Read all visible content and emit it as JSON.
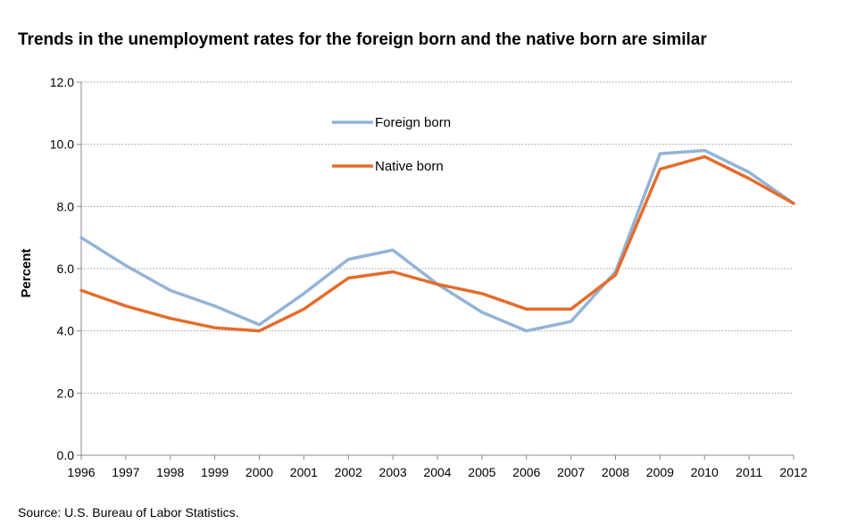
{
  "chart_data": {
    "type": "line",
    "title": "Trends in the unemployment rates for the foreign born and the native born are similar",
    "ylabel": "Percent",
    "xlabel": "",
    "x": [
      "1996",
      "1997",
      "1998",
      "1999",
      "2000",
      "2001",
      "2002",
      "2003",
      "2004",
      "2005",
      "2006",
      "2007",
      "2008",
      "2009",
      "2010",
      "2011",
      "2012"
    ],
    "ylim": [
      0,
      12
    ],
    "yticks": [
      "0.0",
      "2.0",
      "4.0",
      "6.0",
      "8.0",
      "10.0",
      "12.0"
    ],
    "grid": "horizontal dotted",
    "legend_position": "top-center",
    "series": [
      {
        "name": "Foreign born",
        "color": "#93b3d7",
        "values": [
          7.0,
          6.1,
          5.3,
          4.8,
          4.2,
          5.2,
          6.3,
          6.6,
          5.5,
          4.6,
          4.0,
          4.3,
          5.9,
          9.7,
          9.8,
          9.1,
          8.1
        ]
      },
      {
        "name": "Native born",
        "color": "#e46c2c",
        "values": [
          5.3,
          4.8,
          4.4,
          4.1,
          4.0,
          4.7,
          5.7,
          5.9,
          5.5,
          5.2,
          4.7,
          4.7,
          5.8,
          9.2,
          9.6,
          8.9,
          8.1
        ]
      }
    ]
  },
  "source": "Source: U.S. Bureau of Labor Statistics."
}
